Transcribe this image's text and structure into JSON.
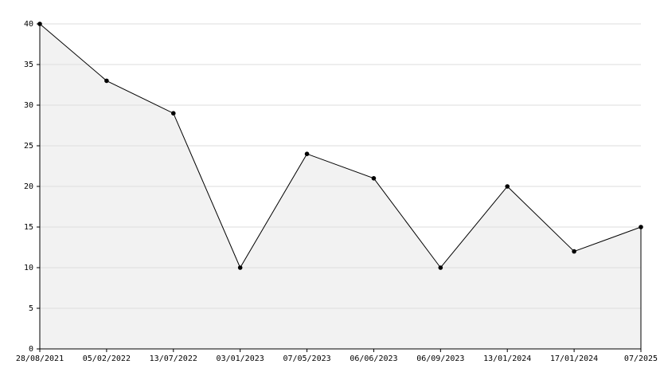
{
  "chart_data": {
    "type": "line",
    "categories": [
      "28/08/2021",
      "05/02/2022",
      "13/07/2022",
      "03/01/2023",
      "07/05/2023",
      "06/06/2023",
      "06/09/2023",
      "13/01/2024",
      "17/01/2024",
      "07/2025"
    ],
    "values": [
      40,
      33,
      29,
      10,
      24,
      21,
      10,
      20,
      12,
      15
    ],
    "color": "#000000",
    "area": true,
    "area_color": "#f2f2f2",
    "ylim": [
      0,
      40
    ],
    "yticks": [
      0,
      5,
      10,
      15,
      20,
      25,
      30,
      35,
      40
    ],
    "grid": true
  }
}
